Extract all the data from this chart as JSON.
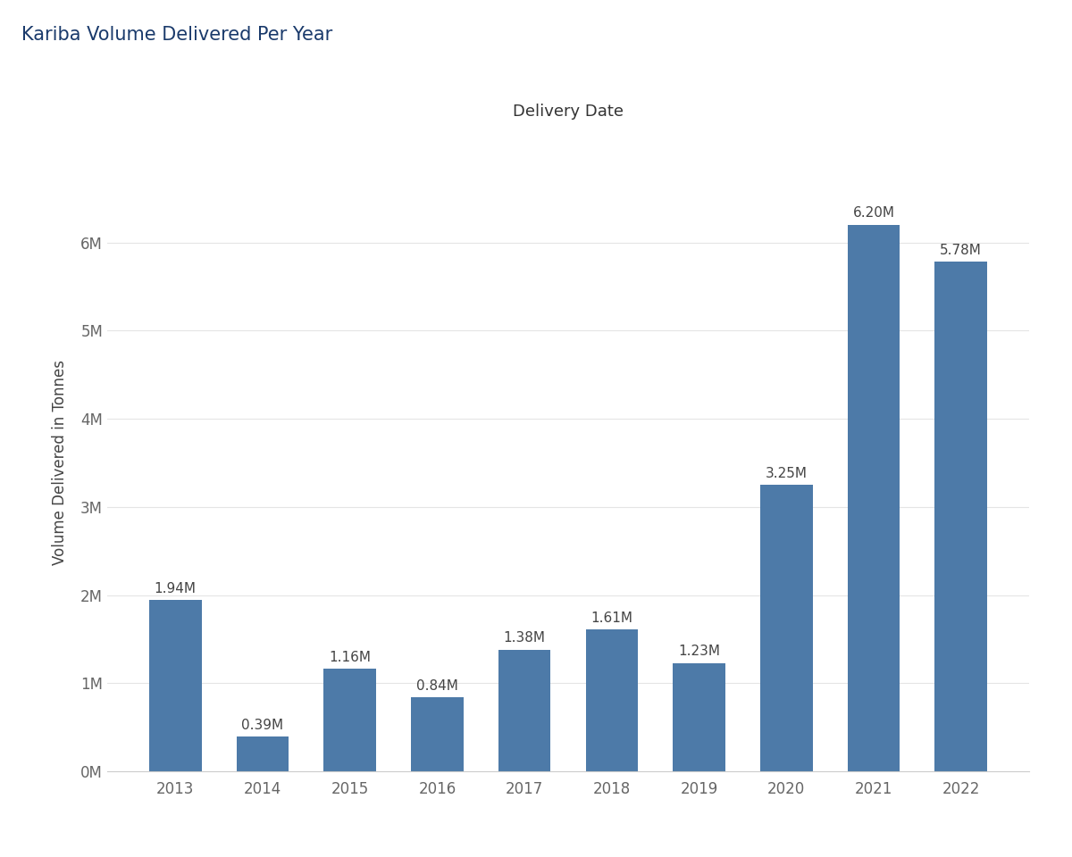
{
  "title_main": "Kariba Volume Delivered Per Year",
  "title_main_color": "#1a3a6b",
  "xlabel": "Delivery Date",
  "ylabel": "Volume Delivered in Tonnes",
  "categories": [
    "2013",
    "2014",
    "2015",
    "2016",
    "2017",
    "2018",
    "2019",
    "2020",
    "2021",
    "2022"
  ],
  "values": [
    1940000,
    390000,
    1160000,
    840000,
    1380000,
    1610000,
    1230000,
    3250000,
    6200000,
    5780000
  ],
  "labels": [
    "1.94M",
    "0.39M",
    "1.16M",
    "0.84M",
    "1.38M",
    "1.61M",
    "1.23M",
    "3.25M",
    "6.20M",
    "5.78M"
  ],
  "bar_color": "#4d7aa8",
  "background_color": "#ffffff",
  "ylim": [
    0,
    7000000
  ],
  "yticks": [
    0,
    1000000,
    2000000,
    3000000,
    4000000,
    5000000,
    6000000
  ],
  "ytick_labels": [
    "0M",
    "1M",
    "2M",
    "3M",
    "4M",
    "5M",
    "6M"
  ],
  "title_fontsize": 14,
  "xlabel_fontsize": 13,
  "ylabel_fontsize": 12,
  "bar_label_fontsize": 11,
  "tick_fontsize": 12,
  "grid_color": "#e5e5e5",
  "title_main_fontsize": 15
}
